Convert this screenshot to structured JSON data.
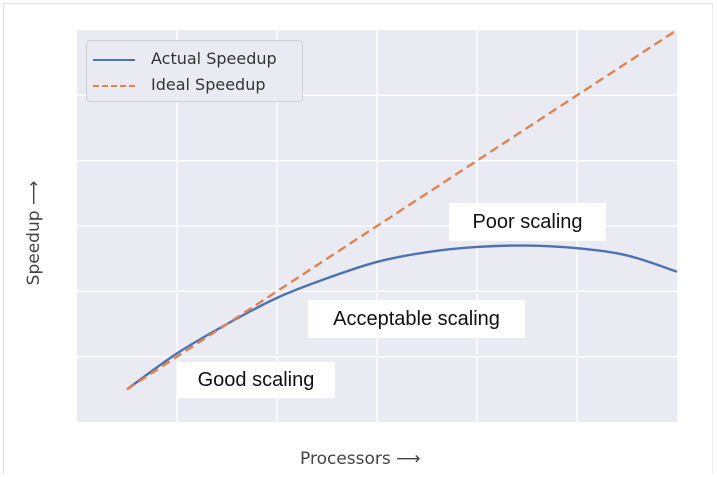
{
  "chart_data": {
    "type": "line",
    "xlabel": "Processors ⟶",
    "ylabel": "Speedup ⟶",
    "x_ticks_labeled": false,
    "y_ticks_labeled": false,
    "grid": true,
    "legend_position": "top-left",
    "xlim": [
      0,
      6
    ],
    "ylim": [
      0,
      6
    ],
    "series": [
      {
        "name": "Actual Speedup",
        "color": "#4c72b0",
        "style": "solid",
        "x": [
          0.5,
          1.0,
          1.5,
          2.0,
          2.5,
          3.0,
          3.5,
          4.0,
          4.5,
          5.0,
          5.5,
          6.0
        ],
        "y": [
          0.5,
          1.05,
          1.5,
          1.9,
          2.2,
          2.45,
          2.6,
          2.68,
          2.7,
          2.66,
          2.55,
          2.3
        ]
      },
      {
        "name": "Ideal Speedup",
        "color": "#dd8452",
        "style": "dashed",
        "x": [
          0.5,
          6.0
        ],
        "y": [
          0.5,
          6.0
        ]
      }
    ],
    "annotations": [
      {
        "text": "Good scaling",
        "x": 1.6,
        "y": 0.65
      },
      {
        "text": "Acceptable scaling",
        "x": 3.2,
        "y": 1.6
      },
      {
        "text": "Poor scaling",
        "x": 4.3,
        "y": 3.05
      }
    ]
  },
  "colors": {
    "plot_background": "#eaeaf2",
    "grid": "#ffffff"
  }
}
